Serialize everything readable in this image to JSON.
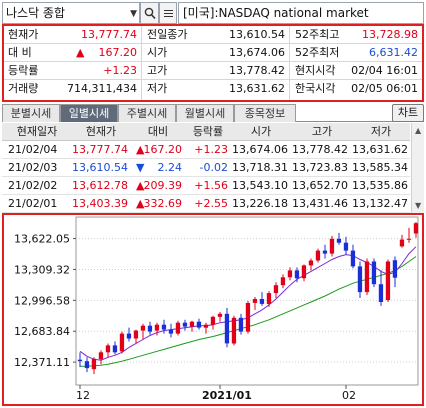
{
  "topbar": {
    "symbol": "나스닥 종합",
    "market": "[미국]:NASDAQ national market"
  },
  "info": {
    "rows": [
      {
        "l1": "현재가",
        "v1": "13,777.74",
        "l2": "전일종가",
        "v2": "13,610.54",
        "l3": "52주최고",
        "v3": "13,728.98"
      },
      {
        "l1": "대  비",
        "v1": "167.20",
        "l2": "시가",
        "v2": "13,674.06",
        "l3": "52주최저",
        "v3": "6,631.42"
      },
      {
        "l1": "등락률",
        "v1": "+1.23",
        "l2": "고가",
        "v2": "13,778.42",
        "l3": "현지시각",
        "v3": "02/04 16:01"
      },
      {
        "l1": "거래량",
        "v1": "714,311,434",
        "l2": "저가",
        "v2": "13,631.62",
        "l3": "한국시각",
        "v3": "02/05 06:01"
      }
    ],
    "change_arrow": "▲"
  },
  "tabs": [
    "분별시세",
    "일별시세",
    "주별시세",
    "월별시세",
    "종목정보"
  ],
  "chart_button": "차트",
  "table": {
    "headers": [
      "현재일자",
      "현재가",
      "대비",
      "등락률",
      "시가",
      "고가",
      "저가"
    ],
    "rows": [
      {
        "date": "21/02/04",
        "price": "13,777.74",
        "arrow": "▲",
        "diff": "167.20",
        "rate": "+1.23",
        "open": "13,674.06",
        "high": "13,778.42",
        "low": "13,631.62",
        "dir": "up"
      },
      {
        "date": "21/02/03",
        "price": "13,610.54",
        "arrow": "▼",
        "diff": "2.24",
        "rate": "-0.02",
        "open": "13,718.31",
        "high": "13,723.83",
        "low": "13,585.34",
        "dir": "down"
      },
      {
        "date": "21/02/02",
        "price": "13,612.78",
        "arrow": "▲",
        "diff": "209.39",
        "rate": "+1.56",
        "open": "13,543.10",
        "high": "13,652.70",
        "low": "13,535.86",
        "dir": "up"
      },
      {
        "date": "21/02/01",
        "price": "13,403.39",
        "arrow": "▲",
        "diff": "332.69",
        "rate": "+2.55",
        "open": "13,226.18",
        "high": "13,431.46",
        "low": "13,132.47",
        "dir": "up"
      }
    ]
  },
  "chart_data": {
    "type": "candlestick",
    "ylim": [
      12200,
      13800
    ],
    "y_ticks": [
      "13,622.05",
      "13,309.32",
      "12,996.58",
      "12,683.84",
      "12,371.11"
    ],
    "y_tick_values": [
      13622.05,
      13309.32,
      12996.58,
      12683.84,
      12371.11
    ],
    "x_labels": [
      "12",
      "2021/01",
      "02"
    ],
    "x_label_index": [
      0,
      20,
      38
    ],
    "candles": [
      [
        12395,
        12470,
        12320,
        12380
      ],
      [
        12380,
        12420,
        12270,
        12310
      ],
      [
        12300,
        12420,
        12250,
        12405
      ],
      [
        12400,
        12490,
        12350,
        12470
      ],
      [
        12470,
        12560,
        12420,
        12540
      ],
      [
        12540,
        12580,
        12450,
        12470
      ],
      [
        12480,
        12680,
        12460,
        12660
      ],
      [
        12660,
        12720,
        12580,
        12610
      ],
      [
        12610,
        12700,
        12560,
        12690
      ],
      [
        12690,
        12760,
        12600,
        12740
      ],
      [
        12740,
        12780,
        12650,
        12680
      ],
      [
        12690,
        12770,
        12640,
        12750
      ],
      [
        12750,
        12800,
        12660,
        12700
      ],
      [
        12700,
        12760,
        12620,
        12660
      ],
      [
        12660,
        12790,
        12640,
        12770
      ],
      [
        12770,
        12800,
        12690,
        12730
      ],
      [
        12730,
        12790,
        12680,
        12780
      ],
      [
        12780,
        12810,
        12700,
        12720
      ],
      [
        12720,
        12770,
        12660,
        12750
      ],
      [
        12750,
        12840,
        12700,
        12830
      ],
      [
        12830,
        12880,
        12780,
        12860
      ],
      [
        12860,
        12920,
        12520,
        12560
      ],
      [
        12560,
        12840,
        12540,
        12820
      ],
      [
        12820,
        12860,
        12650,
        12680
      ],
      [
        12680,
        12990,
        12660,
        12970
      ],
      [
        12970,
        13030,
        12900,
        13010
      ],
      [
        13010,
        13080,
        12940,
        12960
      ],
      [
        12960,
        13090,
        12930,
        13070
      ],
      [
        13070,
        13180,
        13020,
        13150
      ],
      [
        13150,
        13260,
        13120,
        13230
      ],
      [
        13230,
        13330,
        13200,
        13300
      ],
      [
        13300,
        13330,
        13180,
        13220
      ],
      [
        13220,
        13360,
        13190,
        13350
      ],
      [
        13350,
        13420,
        13300,
        13400
      ],
      [
        13400,
        13520,
        13380,
        13500
      ],
      [
        13500,
        13560,
        13420,
        13470
      ],
      [
        13470,
        13650,
        13440,
        13620
      ],
      [
        13620,
        13680,
        13560,
        13580
      ],
      [
        13580,
        13640,
        13460,
        13500
      ],
      [
        13500,
        13560,
        13320,
        13340
      ],
      [
        13340,
        13390,
        13020,
        13080
      ],
      [
        13080,
        13420,
        13050,
        13390
      ],
      [
        13390,
        13420,
        13130,
        13160
      ],
      [
        13160,
        13300,
        12940,
        12980
      ],
      [
        13000,
        13410,
        12980,
        13390
      ],
      [
        13403,
        13440,
        13130,
        13226
      ],
      [
        13543,
        13660,
        13530,
        13612
      ],
      [
        13610,
        13730,
        13580,
        13620
      ],
      [
        13674,
        13790,
        13630,
        13778
      ]
    ],
    "ma_short": [
      12480,
      12430,
      12400,
      12390,
      12420,
      12440,
      12470,
      12520,
      12560,
      12600,
      12640,
      12670,
      12690,
      12700,
      12710,
      12720,
      12730,
      12740,
      12740,
      12750,
      12770,
      12780,
      12790,
      12800,
      12820,
      12860,
      12900,
      12950,
      13010,
      13080,
      13150,
      13210,
      13250,
      13290,
      13330,
      13370,
      13410,
      13440,
      13460,
      13450,
      13410,
      13380,
      13340,
      13290,
      13260,
      13280,
      13370,
      13470,
      13540
    ],
    "ma_long": [
      12330,
      12330,
      12335,
      12340,
      12350,
      12365,
      12380,
      12400,
      12420,
      12440,
      12460,
      12480,
      12500,
      12520,
      12540,
      12560,
      12580,
      12600,
      12615,
      12630,
      12650,
      12670,
      12690,
      12710,
      12730,
      12750,
      12775,
      12800,
      12830,
      12860,
      12890,
      12920,
      12950,
      12980,
      13010,
      13040,
      13075,
      13110,
      13140,
      13170,
      13190,
      13210,
      13230,
      13250,
      13270,
      13300,
      13340,
      13390,
      13440
    ],
    "colors": {
      "up": "#e0001a",
      "down": "#1a2fd6",
      "ma_short": "#7a2ad6",
      "ma_long": "#1a9a1a"
    }
  }
}
